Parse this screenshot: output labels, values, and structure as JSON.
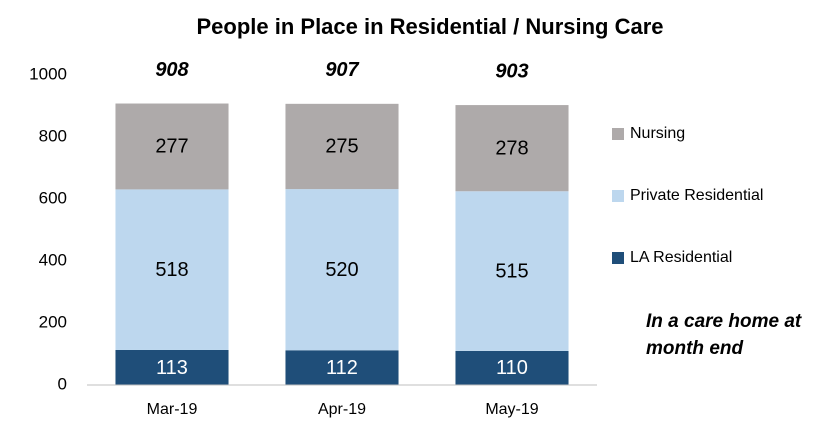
{
  "chart_data": {
    "type": "stacked_bar",
    "title": "People in Place in Residential / Nursing Care",
    "categories": [
      "Mar-19",
      "Apr-19",
      "May-19"
    ],
    "series": [
      {
        "name": "LA Residential",
        "color": "#1f4e79",
        "values": [
          113,
          112,
          110
        ]
      },
      {
        "name": "Private Residential",
        "color": "#bdd7ee",
        "values": [
          518,
          520,
          515
        ]
      },
      {
        "name": "Nursing",
        "color": "#aeaaaa",
        "values": [
          277,
          275,
          278
        ]
      }
    ],
    "totals": [
      908,
      907,
      903
    ],
    "ylim": [
      0,
      1000
    ],
    "yticks": [
      0,
      200,
      400,
      600,
      800,
      1000
    ],
    "legend": "right",
    "annotation": "In a care home at month end"
  }
}
